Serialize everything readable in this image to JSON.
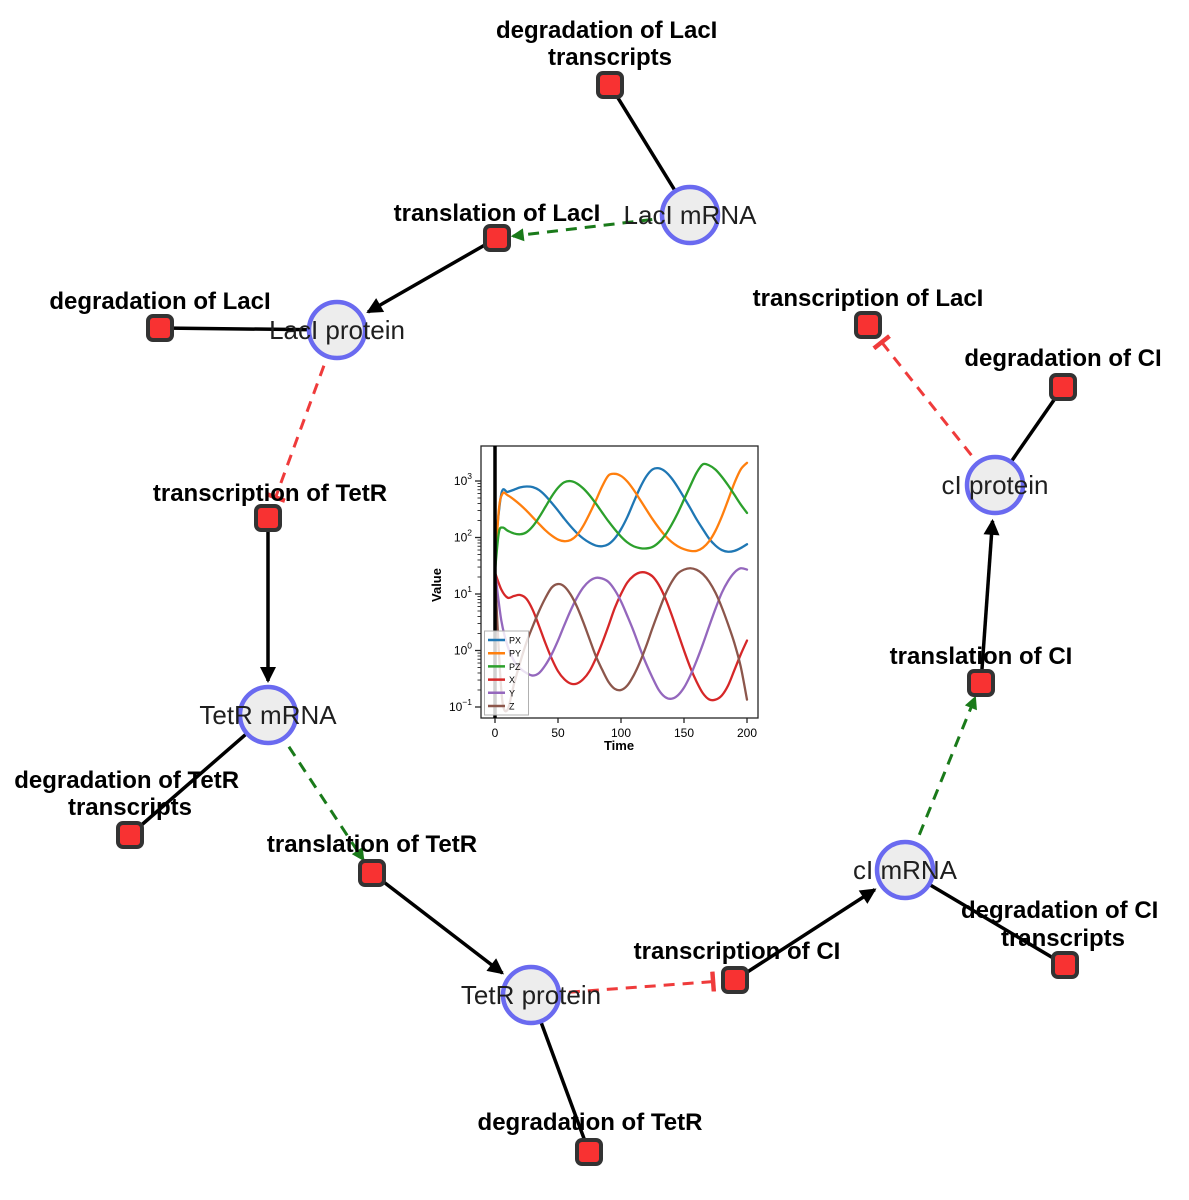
{
  "network": {
    "species": [
      {
        "id": "laci-mrna",
        "label": "LacI mRNA"
      },
      {
        "id": "laci-protein",
        "label": "LacI protein"
      },
      {
        "id": "tetr-mrna",
        "label": "TetR mRNA"
      },
      {
        "id": "tetr-protein",
        "label": "TetR protein"
      },
      {
        "id": "ci-mrna",
        "label": "cI mRNA"
      },
      {
        "id": "ci-protein",
        "label": "cI protein"
      }
    ],
    "reactions": [
      {
        "id": "degradation-laci-transcripts",
        "lines": [
          "degradation of LacI",
          "transcripts"
        ]
      },
      {
        "id": "translation-laci",
        "lines": [
          "translation of LacI"
        ]
      },
      {
        "id": "degradation-laci",
        "lines": [
          "degradation of LacI"
        ]
      },
      {
        "id": "transcription-laci",
        "lines": [
          "transcription of LacI"
        ]
      },
      {
        "id": "degradation-ci",
        "lines": [
          "degradation of CI"
        ]
      },
      {
        "id": "transcription-tetr",
        "lines": [
          "transcription of TetR"
        ]
      },
      {
        "id": "degradation-tetr-transcripts",
        "lines": [
          "degradation of TetR",
          "transcripts"
        ]
      },
      {
        "id": "translation-tetr",
        "lines": [
          "translation of TetR"
        ]
      },
      {
        "id": "degradation-tetr",
        "lines": [
          "degradation of TetR"
        ]
      },
      {
        "id": "transcription-ci",
        "lines": [
          "transcription of CI"
        ]
      },
      {
        "id": "degradation-ci-transcripts",
        "lines": [
          "degradation of CI",
          "transcripts"
        ]
      },
      {
        "id": "translation-ci",
        "lines": [
          "translation of CI"
        ]
      }
    ],
    "edge_semantics": {
      "black_solid": "reaction/consumption link",
      "green_dashed": "mRNA activates translation",
      "red_dashed_tee": "protein represses transcription"
    },
    "palette": {
      "species_fill": "#ededed",
      "species_stroke": "#6a6af0",
      "reaction_fill": "#f83232",
      "reaction_stroke": "#333333",
      "edge_black": "#000000",
      "edge_green": "#1a7a1a",
      "edge_red": "#ef3b3b"
    }
  },
  "chart_data": {
    "type": "line",
    "title": "",
    "xlabel": "Time",
    "ylabel": "Value",
    "xlim": [
      -8,
      209
    ],
    "yscale": "log",
    "ylim": [
      0.08,
      3500
    ],
    "xticks": [
      0,
      50,
      100,
      150,
      200
    ],
    "ytick_exponents": [
      -1,
      0,
      1,
      2,
      3
    ],
    "vline_x": 0,
    "legend_position": "lower left",
    "series": [
      {
        "name": "PX",
        "color": "#1f77b4",
        "points": [
          [
            0,
            60
          ],
          [
            5,
            590
          ],
          [
            10,
            640
          ],
          [
            15,
            700
          ],
          [
            20,
            770
          ],
          [
            25,
            800
          ],
          [
            30,
            780
          ],
          [
            35,
            690
          ],
          [
            40,
            550
          ],
          [
            45,
            410
          ],
          [
            50,
            300
          ],
          [
            55,
            215
          ],
          [
            60,
            158
          ],
          [
            65,
            120
          ],
          [
            70,
            96
          ],
          [
            75,
            81
          ],
          [
            80,
            72
          ],
          [
            85,
            70
          ],
          [
            90,
            76
          ],
          [
            95,
            96
          ],
          [
            100,
            140
          ],
          [
            105,
            230
          ],
          [
            110,
            420
          ],
          [
            115,
            750
          ],
          [
            120,
            1200
          ],
          [
            125,
            1600
          ],
          [
            130,
            1680
          ],
          [
            135,
            1480
          ],
          [
            140,
            1130
          ],
          [
            145,
            780
          ],
          [
            150,
            510
          ],
          [
            155,
            330
          ],
          [
            160,
            210
          ],
          [
            165,
            140
          ],
          [
            170,
            95
          ],
          [
            175,
            72
          ],
          [
            180,
            60
          ],
          [
            185,
            56
          ],
          [
            190,
            58
          ],
          [
            195,
            65
          ],
          [
            200,
            76
          ]
        ]
      },
      {
        "name": "PY",
        "color": "#ff7f0e",
        "points": [
          [
            0,
            25
          ],
          [
            3,
            300
          ],
          [
            6,
            600
          ],
          [
            10,
            560
          ],
          [
            15,
            470
          ],
          [
            20,
            380
          ],
          [
            25,
            298
          ],
          [
            30,
            228
          ],
          [
            35,
            174
          ],
          [
            40,
            134
          ],
          [
            45,
            108
          ],
          [
            50,
            92
          ],
          [
            55,
            86
          ],
          [
            60,
            90
          ],
          [
            65,
            110
          ],
          [
            70,
            160
          ],
          [
            75,
            262
          ],
          [
            80,
            450
          ],
          [
            85,
            800
          ],
          [
            90,
            1250
          ],
          [
            95,
            1340
          ],
          [
            100,
            1230
          ],
          [
            105,
            980
          ],
          [
            110,
            700
          ],
          [
            115,
            470
          ],
          [
            120,
            315
          ],
          [
            125,
            212
          ],
          [
            130,
            148
          ],
          [
            135,
            108
          ],
          [
            140,
            84
          ],
          [
            145,
            70
          ],
          [
            150,
            62
          ],
          [
            155,
            58
          ],
          [
            160,
            58
          ],
          [
            165,
            66
          ],
          [
            170,
            86
          ],
          [
            175,
            132
          ],
          [
            180,
            235
          ],
          [
            185,
            460
          ],
          [
            190,
            920
          ],
          [
            195,
            1600
          ],
          [
            200,
            2100
          ]
        ]
      },
      {
        "name": "PZ",
        "color": "#2ca02c",
        "points": [
          [
            0,
            25
          ],
          [
            3,
            120
          ],
          [
            6,
            150
          ],
          [
            10,
            132
          ],
          [
            15,
            118
          ],
          [
            20,
            114
          ],
          [
            25,
            124
          ],
          [
            30,
            158
          ],
          [
            35,
            228
          ],
          [
            40,
            348
          ],
          [
            45,
            535
          ],
          [
            50,
            760
          ],
          [
            55,
            950
          ],
          [
            60,
            995
          ],
          [
            65,
            905
          ],
          [
            70,
            740
          ],
          [
            75,
            560
          ],
          [
            80,
            400
          ],
          [
            85,
            278
          ],
          [
            90,
            194
          ],
          [
            95,
            140
          ],
          [
            100,
            104
          ],
          [
            105,
            82
          ],
          [
            110,
            70
          ],
          [
            115,
            65
          ],
          [
            120,
            64
          ],
          [
            125,
            68
          ],
          [
            130,
            82
          ],
          [
            135,
            110
          ],
          [
            140,
            166
          ],
          [
            145,
            270
          ],
          [
            150,
            470
          ],
          [
            155,
            820
          ],
          [
            160,
            1400
          ],
          [
            165,
            1980
          ],
          [
            170,
            1890
          ],
          [
            175,
            1590
          ],
          [
            180,
            1190
          ],
          [
            185,
            840
          ],
          [
            190,
            570
          ],
          [
            195,
            385
          ],
          [
            200,
            272
          ]
        ]
      },
      {
        "name": "X",
        "color": "#d62728",
        "points": [
          [
            0,
            24
          ],
          [
            5,
            12
          ],
          [
            10,
            8.6
          ],
          [
            15,
            9.2
          ],
          [
            20,
            9.6
          ],
          [
            25,
            8.2
          ],
          [
            30,
            5.2
          ],
          [
            35,
            2.7
          ],
          [
            40,
            1.35
          ],
          [
            45,
            0.72
          ],
          [
            50,
            0.43
          ],
          [
            55,
            0.31
          ],
          [
            60,
            0.26
          ],
          [
            65,
            0.26
          ],
          [
            70,
            0.31
          ],
          [
            75,
            0.43
          ],
          [
            80,
            0.72
          ],
          [
            85,
            1.35
          ],
          [
            90,
            2.7
          ],
          [
            95,
            5.6
          ],
          [
            100,
            10
          ],
          [
            105,
            16
          ],
          [
            110,
            21
          ],
          [
            115,
            24
          ],
          [
            120,
            23.8
          ],
          [
            125,
            20.5
          ],
          [
            130,
            14.5
          ],
          [
            135,
            8.6
          ],
          [
            140,
            4.4
          ],
          [
            145,
            2.1
          ],
          [
            150,
            1.0
          ],
          [
            155,
            0.5
          ],
          [
            160,
            0.28
          ],
          [
            165,
            0.175
          ],
          [
            170,
            0.136
          ],
          [
            175,
            0.135
          ],
          [
            180,
            0.16
          ],
          [
            185,
            0.24
          ],
          [
            190,
            0.45
          ],
          [
            195,
            0.85
          ],
          [
            200,
            1.5
          ]
        ]
      },
      {
        "name": "Y",
        "color": "#9467bd",
        "points": [
          [
            0,
            25
          ],
          [
            5,
            3.4
          ],
          [
            10,
            1.2
          ],
          [
            15,
            0.66
          ],
          [
            20,
            0.48
          ],
          [
            25,
            0.4
          ],
          [
            30,
            0.36
          ],
          [
            35,
            0.4
          ],
          [
            40,
            0.55
          ],
          [
            45,
            0.86
          ],
          [
            50,
            1.5
          ],
          [
            55,
            2.8
          ],
          [
            60,
            5.1
          ],
          [
            65,
            8.6
          ],
          [
            70,
            13
          ],
          [
            75,
            17
          ],
          [
            80,
            19.3
          ],
          [
            85,
            18.8
          ],
          [
            90,
            16.4
          ],
          [
            95,
            11.8
          ],
          [
            100,
            7.4
          ],
          [
            105,
            4.1
          ],
          [
            110,
            2.2
          ],
          [
            115,
            1.1
          ],
          [
            120,
            0.58
          ],
          [
            125,
            0.33
          ],
          [
            130,
            0.2
          ],
          [
            135,
            0.15
          ],
          [
            140,
            0.14
          ],
          [
            145,
            0.16
          ],
          [
            150,
            0.22
          ],
          [
            155,
            0.36
          ],
          [
            160,
            0.66
          ],
          [
            165,
            1.3
          ],
          [
            170,
            2.7
          ],
          [
            175,
            5.5
          ],
          [
            180,
            10.5
          ],
          [
            185,
            17
          ],
          [
            190,
            24
          ],
          [
            195,
            28.5
          ],
          [
            200,
            27
          ]
        ]
      },
      {
        "name": "Z",
        "color": "#8c564b",
        "points": [
          [
            0,
            25
          ],
          [
            3,
            1
          ],
          [
            6,
            0.12
          ],
          [
            10,
            0.09
          ],
          [
            15,
            0.25
          ],
          [
            20,
            0.62
          ],
          [
            25,
            1.4
          ],
          [
            30,
            2.7
          ],
          [
            35,
            5
          ],
          [
            40,
            8.5
          ],
          [
            45,
            13
          ],
          [
            50,
            15
          ],
          [
            55,
            13.6
          ],
          [
            60,
            9.8
          ],
          [
            65,
            6
          ],
          [
            70,
            3.2
          ],
          [
            75,
            1.6
          ],
          [
            80,
            0.8
          ],
          [
            85,
            0.46
          ],
          [
            90,
            0.28
          ],
          [
            95,
            0.21
          ],
          [
            100,
            0.2
          ],
          [
            105,
            0.24
          ],
          [
            110,
            0.36
          ],
          [
            115,
            0.62
          ],
          [
            120,
            1.2
          ],
          [
            125,
            2.5
          ],
          [
            130,
            5
          ],
          [
            135,
            9.6
          ],
          [
            140,
            16
          ],
          [
            145,
            23
          ],
          [
            150,
            27
          ],
          [
            155,
            28.6
          ],
          [
            160,
            26.8
          ],
          [
            165,
            22.5
          ],
          [
            170,
            16.5
          ],
          [
            175,
            10.5
          ],
          [
            180,
            5.8
          ],
          [
            185,
            2.9
          ],
          [
            190,
            1.35
          ],
          [
            195,
            0.52
          ],
          [
            200,
            0.135
          ]
        ]
      }
    ]
  }
}
